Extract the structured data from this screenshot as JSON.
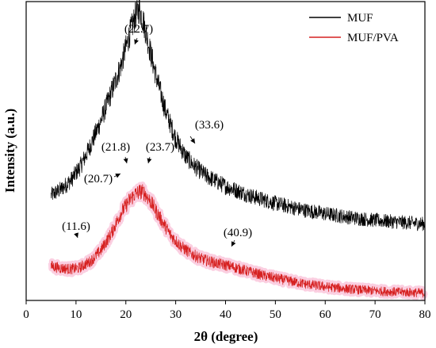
{
  "chart_data": {
    "type": "line",
    "title": "",
    "xlabel": "2θ (degree)",
    "ylabel": "Intensity (a.u.)",
    "xlim": [
      0,
      80
    ],
    "x_ticks": [
      0,
      10,
      20,
      30,
      40,
      50,
      60,
      70,
      80
    ],
    "y_ticks_shown": false,
    "grid": false,
    "legend_position": "top-right",
    "series": [
      {
        "name": "MUF",
        "color": "#000000",
        "points": [
          [
            5,
            0.352
          ],
          [
            7,
            0.372
          ],
          [
            9,
            0.402
          ],
          [
            11,
            0.452
          ],
          [
            13,
            0.522
          ],
          [
            15,
            0.602
          ],
          [
            17,
            0.692
          ],
          [
            19,
            0.785
          ],
          [
            20,
            0.845
          ],
          [
            21,
            0.905
          ],
          [
            22,
            0.955
          ],
          [
            22.7,
            0.975
          ],
          [
            23.5,
            0.935
          ],
          [
            24.5,
            0.862
          ],
          [
            26,
            0.755
          ],
          [
            28,
            0.632
          ],
          [
            30,
            0.542
          ],
          [
            32,
            0.482
          ],
          [
            33.6,
            0.452
          ],
          [
            36,
            0.418
          ],
          [
            40,
            0.382
          ],
          [
            45,
            0.35
          ],
          [
            50,
            0.325
          ],
          [
            55,
            0.305
          ],
          [
            60,
            0.29
          ],
          [
            65,
            0.278
          ],
          [
            70,
            0.268
          ],
          [
            75,
            0.262
          ],
          [
            80,
            0.256
          ]
        ]
      },
      {
        "name": "MUF/PVA",
        "color": "#d62020",
        "points": [
          [
            5,
            0.115
          ],
          [
            7,
            0.108
          ],
          [
            9,
            0.105
          ],
          [
            10.5,
            0.108
          ],
          [
            11.6,
            0.118
          ],
          [
            13,
            0.132
          ],
          [
            15,
            0.168
          ],
          [
            17,
            0.222
          ],
          [
            19,
            0.292
          ],
          [
            20.7,
            0.335
          ],
          [
            21.8,
            0.355
          ],
          [
            23,
            0.365
          ],
          [
            23.7,
            0.36
          ],
          [
            25,
            0.33
          ],
          [
            27,
            0.272
          ],
          [
            29,
            0.218
          ],
          [
            31,
            0.182
          ],
          [
            33,
            0.158
          ],
          [
            35,
            0.14
          ],
          [
            38,
            0.125
          ],
          [
            40.9,
            0.115
          ],
          [
            44,
            0.1
          ],
          [
            48,
            0.082
          ],
          [
            52,
            0.068
          ],
          [
            56,
            0.055
          ],
          [
            60,
            0.046
          ],
          [
            65,
            0.038
          ],
          [
            70,
            0.032
          ],
          [
            75,
            0.028
          ],
          [
            80,
            0.025
          ]
        ]
      }
    ],
    "annotations": [
      {
        "text": "(22.7)",
        "x": 22.7,
        "series": "MUF"
      },
      {
        "text": "(33.6)",
        "x": 33.6,
        "series": "MUF"
      },
      {
        "text": "(21.8)",
        "x": 21.8,
        "series": "MUF/PVA"
      },
      {
        "text": "(23.7)",
        "x": 23.7,
        "series": "MUF/PVA"
      },
      {
        "text": "(20.7)",
        "x": 20.7,
        "series": "MUF/PVA"
      },
      {
        "text": "(11.6)",
        "x": 11.6,
        "series": "MUF/PVA"
      },
      {
        "text": "(40.9)",
        "x": 40.9,
        "series": "MUF/PVA"
      }
    ]
  }
}
